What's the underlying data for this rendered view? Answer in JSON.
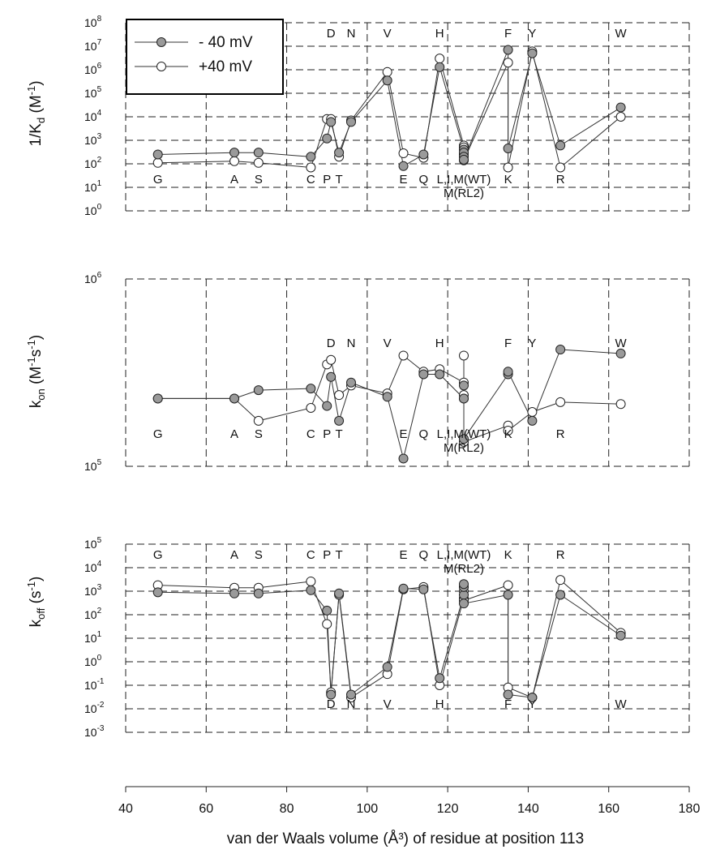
{
  "legend": [
    {
      "name": "- 40 mV",
      "fill": "#9a9a9a"
    },
    {
      "name": "+40 mV",
      "fill": "#ffffff"
    }
  ],
  "xaxis": {
    "label": "van der Waals volume (Å³) of residue at position 113",
    "range": [
      40,
      180
    ],
    "ticks": [
      40,
      60,
      80,
      100,
      120,
      140,
      160,
      180
    ]
  },
  "panels": [
    {
      "id": "kd",
      "ylabel_main": "1/K",
      "ylabel_sub": "d",
      "ylabel_unit": " (M",
      "ylabel_sup": "-1",
      "ylabel_close": ")",
      "ylog_range": [
        0,
        8
      ],
      "yticks": [
        0,
        1,
        2,
        3,
        4,
        5,
        6,
        7,
        8
      ]
    },
    {
      "id": "kon",
      "ylabel_main": "k",
      "ylabel_sub": "on",
      "ylabel_unit": " (M",
      "ylabel_sup": "-1",
      "ylabel_unit2": "s",
      "ylabel_sup2": "-1",
      "ylabel_close": ")",
      "ylog_range": [
        5,
        6
      ],
      "yticks": [
        5,
        6
      ]
    },
    {
      "id": "koff",
      "ylabel_main": "k",
      "ylabel_sub": "off",
      "ylabel_unit": " (s",
      "ylabel_sup": "-1",
      "ylabel_close": ")",
      "ylog_range": [
        -3,
        5
      ],
      "yticks": [
        -3,
        -2,
        -1,
        0,
        1,
        2,
        3,
        4,
        5
      ]
    }
  ],
  "chart_data": [
    {
      "type": "line",
      "ylabel": "1/Kd (M-1)",
      "yscale": "log",
      "ylim": [
        1,
        100000000
      ],
      "xlim": [
        40,
        180
      ],
      "x": [
        48,
        67,
        73,
        86,
        90,
        91,
        93,
        96,
        105,
        109,
        114,
        118,
        124,
        124,
        124,
        124,
        135,
        135,
        141,
        148,
        163
      ],
      "series": [
        {
          "name": "- 40 mV",
          "values": [
            250,
            300,
            300,
            200,
            1200,
            6000,
            300,
            6000,
            350000,
            80,
            250,
            1300000,
            400,
            300,
            200,
            150,
            7000000,
            450,
            5000000,
            600,
            25000
          ]
        },
        {
          "name": "+40 mV",
          "values": [
            110,
            130,
            110,
            70,
            8000,
            8000,
            200,
            7000,
            800000,
            280,
            180,
            3000000,
            600,
            500,
            250,
            140,
            2000000,
            70,
            6000000,
            70,
            10000
          ]
        }
      ],
      "labels_top": [
        {
          "text": "D",
          "x": 91
        },
        {
          "text": "N",
          "x": 96
        },
        {
          "text": "V",
          "x": 105
        },
        {
          "text": "H",
          "x": 118
        },
        {
          "text": "F",
          "x": 135
        },
        {
          "text": "Y",
          "x": 141
        },
        {
          "text": "W",
          "x": 163
        }
      ],
      "labels_bottom": [
        {
          "text": "G",
          "x": 48
        },
        {
          "text": "A",
          "x": 67
        },
        {
          "text": "S",
          "x": 73
        },
        {
          "text": "C",
          "x": 86
        },
        {
          "text": "P",
          "x": 90
        },
        {
          "text": "T",
          "x": 93
        },
        {
          "text": "E",
          "x": 109
        },
        {
          "text": "Q",
          "x": 114
        },
        {
          "text": "L,I,M(WT)",
          "x": 124
        },
        {
          "text": "M(RL2)",
          "x": 124
        },
        {
          "text": "K",
          "x": 135
        },
        {
          "text": "R",
          "x": 148
        }
      ]
    },
    {
      "type": "line",
      "ylabel": "kon (M-1s-1)",
      "yscale": "log",
      "ylim": [
        100000,
        1000000
      ],
      "xlim": [
        40,
        180
      ],
      "x": [
        48,
        67,
        73,
        86,
        90,
        91,
        93,
        96,
        105,
        109,
        114,
        118,
        124,
        124,
        124,
        124,
        135,
        135,
        141,
        148,
        163
      ],
      "series": [
        {
          "name": "- 40 mV",
          "values": [
            230000,
            230000,
            255000,
            260000,
            210000,
            300000,
            175000,
            280000,
            235000,
            110000,
            310000,
            310000,
            230000,
            270000,
            230000,
            140000,
            310000,
            320000,
            175000,
            420000,
            400000
          ]
        },
        {
          "name": "+40 mV",
          "values": [
            230000,
            230000,
            175000,
            205000,
            350000,
            370000,
            240000,
            270000,
            245000,
            390000,
            320000,
            330000,
            280000,
            390000,
            240000,
            135000,
            165000,
            155000,
            195000,
            220000,
            215000
          ]
        }
      ],
      "labels_top": [
        {
          "text": "D",
          "x": 91
        },
        {
          "text": "N",
          "x": 96
        },
        {
          "text": "V",
          "x": 105
        },
        {
          "text": "H",
          "x": 118
        },
        {
          "text": "F",
          "x": 135
        },
        {
          "text": "Y",
          "x": 141
        },
        {
          "text": "W",
          "x": 163
        }
      ],
      "labels_bottom": [
        {
          "text": "G",
          "x": 48
        },
        {
          "text": "A",
          "x": 67
        },
        {
          "text": "S",
          "x": 73
        },
        {
          "text": "C",
          "x": 86
        },
        {
          "text": "P",
          "x": 90
        },
        {
          "text": "T",
          "x": 93
        },
        {
          "text": "Q",
          "x": 114
        },
        {
          "text": "E",
          "x": 109
        },
        {
          "text": "L,I,M(WT)",
          "x": 124
        },
        {
          "text": "M(RL2)",
          "x": 124
        },
        {
          "text": "K",
          "x": 135
        },
        {
          "text": "R",
          "x": 148
        }
      ]
    },
    {
      "type": "line",
      "ylabel": "koff (s-1)",
      "yscale": "log",
      "ylim": [
        0.001,
        100000
      ],
      "xlim": [
        40,
        180
      ],
      "x": [
        48,
        67,
        73,
        86,
        90,
        91,
        93,
        96,
        105,
        109,
        114,
        118,
        124,
        124,
        124,
        124,
        135,
        135,
        141,
        148,
        163
      ],
      "series": [
        {
          "name": "- 40 mV",
          "values": [
            900,
            800,
            800,
            1100,
            150,
            0.04,
            800,
            0.04,
            0.6,
            1300,
            1200,
            0.2,
            700,
            1500,
            2000,
            300,
            700,
            0.04,
            0.03,
            700,
            13
          ]
        },
        {
          "name": "+40 mV",
          "values": [
            1800,
            1400,
            1400,
            2600,
            40,
            0.05,
            700,
            0.03,
            0.3,
            1200,
            1500,
            0.1,
            500,
            1000,
            1500,
            400,
            1800,
            0.08,
            0.03,
            3000,
            17
          ]
        }
      ],
      "labels_top": [
        {
          "text": "G",
          "x": 48
        },
        {
          "text": "A",
          "x": 67
        },
        {
          "text": "S",
          "x": 73
        },
        {
          "text": "C",
          "x": 86
        },
        {
          "text": "P",
          "x": 90
        },
        {
          "text": "T",
          "x": 93
        },
        {
          "text": "E",
          "x": 109
        },
        {
          "text": "Q",
          "x": 114
        },
        {
          "text": "L,I,M(WT)",
          "x": 124
        },
        {
          "text": "M(RL2)",
          "x": 124
        },
        {
          "text": "K",
          "x": 135
        },
        {
          "text": "R",
          "x": 148
        }
      ],
      "labels_bottom": [
        {
          "text": "D",
          "x": 91
        },
        {
          "text": "N",
          "x": 96
        },
        {
          "text": "V",
          "x": 105
        },
        {
          "text": "H",
          "x": 118
        },
        {
          "text": "F",
          "x": 135
        },
        {
          "text": "Y",
          "x": 141
        },
        {
          "text": "W",
          "x": 163
        }
      ]
    }
  ]
}
